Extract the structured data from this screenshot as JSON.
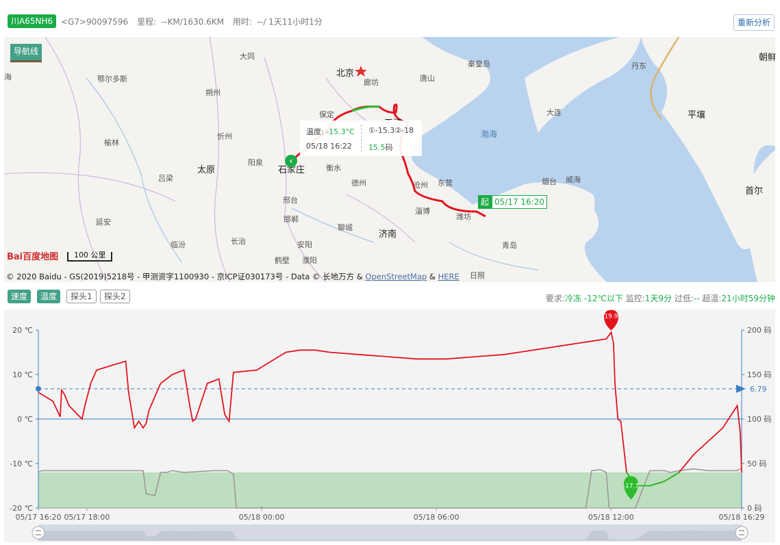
{
  "header": {
    "plate": "川A65NH6",
    "device": "<G7>90097596",
    "mileage_label": "里程:",
    "mileage_value": "--KM/1630.6KM",
    "duration_label": "用时:",
    "duration_value": "--/ 1天11小时1分",
    "reanalyze_label": "重新分析"
  },
  "map": {
    "nav_line_label": "导航线",
    "labels": [
      {
        "text": "北京",
        "cls": "big"
      },
      {
        "text": "天津",
        "cls": "big"
      },
      {
        "text": "石家庄",
        "cls": "big"
      },
      {
        "text": "太原",
        "cls": "big"
      },
      {
        "text": "济南",
        "cls": "big"
      },
      {
        "text": "平壤",
        "cls": "big"
      },
      {
        "text": "首尔",
        "cls": "big"
      },
      {
        "text": "朝鲜",
        "cls": "big"
      },
      {
        "text": "渤海",
        "cls": "sea"
      },
      {
        "text": "大同",
        "cls": ""
      },
      {
        "text": "鄂尔多斯",
        "cls": ""
      },
      {
        "text": "朔州",
        "cls": ""
      },
      {
        "text": "忻州",
        "cls": ""
      },
      {
        "text": "榆林",
        "cls": ""
      },
      {
        "text": "吕梁",
        "cls": ""
      },
      {
        "text": "阳泉",
        "cls": ""
      },
      {
        "text": "延安",
        "cls": ""
      },
      {
        "text": "临汾",
        "cls": ""
      },
      {
        "text": "长治",
        "cls": ""
      },
      {
        "text": "安阳",
        "cls": ""
      },
      {
        "text": "鹤壁",
        "cls": ""
      },
      {
        "text": "濮阳",
        "cls": ""
      },
      {
        "text": "邯郸",
        "cls": ""
      },
      {
        "text": "邢台",
        "cls": ""
      },
      {
        "text": "衡水",
        "cls": ""
      },
      {
        "text": "德州",
        "cls": ""
      },
      {
        "text": "聊城",
        "cls": ""
      },
      {
        "text": "保定",
        "cls": ""
      },
      {
        "text": "廊坊",
        "cls": ""
      },
      {
        "text": "唐山",
        "cls": ""
      },
      {
        "text": "秦皇岛",
        "cls": ""
      },
      {
        "text": "沧州",
        "cls": ""
      },
      {
        "text": "东营",
        "cls": ""
      },
      {
        "text": "淄博",
        "cls": ""
      },
      {
        "text": "潍坊",
        "cls": ""
      },
      {
        "text": "青岛",
        "cls": ""
      },
      {
        "text": "日照",
        "cls": ""
      },
      {
        "text": "烟台",
        "cls": ""
      },
      {
        "text": "威海",
        "cls": ""
      },
      {
        "text": "大连",
        "cls": ""
      },
      {
        "text": "丹东",
        "cls": ""
      },
      {
        "text": "海",
        "cls": ""
      }
    ],
    "tooltip": {
      "temp_label": "温度:",
      "temp_value": "-15.3°C",
      "probes": "①-15.3②-18",
      "time": "05/18 16:22",
      "speed_value": "15.5",
      "speed_unit": "码"
    },
    "start_marker": "起",
    "start_time": "05/17 16:20",
    "end_marker_icon": "chevron-left-icon",
    "scale_label": "100 公里",
    "baidu_logo": "Bai百度地图",
    "copyright": "© 2020 Baidu - GS(2019)5218号 - 甲测资字1100930 - 京ICP证030173号 - Data © 长地万方 &",
    "link_osm": "OpenStreetMap",
    "amp": "&",
    "link_here": "HERE"
  },
  "filters": {
    "speed": "速度",
    "temperature": "温度",
    "probe1": "探头1",
    "probe2": "探头2"
  },
  "requirement": {
    "req_label": "要求:",
    "req_value": "冷冻 -12℃以下",
    "monitor_label": "监控:",
    "monitor_value": "1天9分",
    "overdue_label": "过低:",
    "overdue_value": "--",
    "overtemp_label": "超温:",
    "overtemp_value": "21小时59分钟"
  },
  "chart_data": {
    "type": "line",
    "x_ticks": [
      "05/17 16:20",
      "05/17 18:00",
      "05/18 00:00",
      "05/18 06:00",
      "05/18 12:00",
      "05/18 16:29"
    ],
    "x_tick_hours": [
      0,
      1.667,
      7.667,
      13.667,
      19.667,
      24.15
    ],
    "left_axis": {
      "ticks": [
        "20 ℃",
        "10 ℃",
        "0 ℃",
        "-10 ℃",
        "-20 ℃"
      ],
      "ylim": [
        -20,
        20
      ]
    },
    "right_axis": {
      "ticks": [
        "200 码",
        "150 码",
        "100 码",
        "50 码",
        "0 码"
      ],
      "ylim": [
        0,
        200
      ]
    },
    "threshold_band": {
      "from": -20,
      "to": -12,
      "color": "#bddfbf"
    },
    "reference_line": {
      "value": "6.79",
      "color": "#3b7fc4"
    },
    "max_marker": {
      "value": "19.9"
    },
    "min_marker": {
      "value": "-17.7"
    },
    "series": [
      {
        "color": "#e3141e",
        "x": [
          0,
          0.5,
          0.75,
          0.8,
          0.9,
          1.05,
          1.5,
          1.6,
          1.8,
          2,
          2.5,
          3,
          3.1,
          3.3,
          3.45,
          3.6,
          3.7,
          3.8,
          4.2,
          4.6,
          5,
          5.2,
          5.3,
          5.4,
          5.8,
          6.2,
          6.4,
          6.55,
          6.7,
          7.5,
          8.5,
          9,
          9.5,
          10,
          11,
          12,
          13,
          14,
          15,
          16,
          17,
          18,
          18.5,
          19,
          19.5,
          19.67,
          19.75,
          19.8,
          19.9,
          20,
          20.2,
          20.5,
          21,
          21.5,
          22,
          22.5,
          23,
          23.5,
          23.8,
          24,
          24.1,
          24.15
        ],
        "y": [
          6,
          4,
          0.5,
          6.5,
          5.5,
          3,
          0,
          3,
          8,
          11,
          12,
          13,
          6,
          -2,
          -0.5,
          -2,
          -1,
          2,
          8,
          10,
          11,
          3,
          -0.5,
          0,
          8,
          9,
          1,
          -0.5,
          10.5,
          11,
          15,
          15.5,
          15.5,
          15,
          14.5,
          14,
          13.5,
          13.5,
          14,
          14.5,
          15.5,
          16.5,
          17,
          17.5,
          18,
          19.5,
          17,
          8,
          0,
          -0.5,
          -12,
          -15,
          -15,
          -14,
          -12,
          -8,
          -5,
          -2,
          1,
          3,
          -3,
          -12
        ]
      },
      {
        "color": "#999999",
        "x": [
          0,
          0.1,
          0.5,
          1,
          2,
          3,
          3.5,
          3.6,
          3.7,
          4,
          4.2,
          4.4,
          4.6,
          5,
          6,
          6.5,
          6.7,
          6.8,
          7,
          7.2,
          7.6,
          7.65,
          7.7,
          8,
          9,
          10,
          11,
          12,
          13,
          14,
          15,
          16,
          17,
          17.5,
          17.7,
          18,
          18.5,
          18.8,
          19,
          19.3,
          19.5,
          19.6,
          19.8,
          20,
          20.5,
          21,
          21.5,
          21.7,
          22,
          22.5,
          23,
          23.5,
          24,
          24.15
        ],
        "y": [
          40,
          42,
          42,
          42,
          42,
          42,
          42,
          42,
          16,
          14,
          40,
          40,
          42,
          40,
          42,
          42,
          38,
          0,
          0,
          0,
          0,
          1,
          0,
          0,
          0,
          0,
          0,
          0,
          0,
          0,
          0,
          0,
          0,
          0,
          0,
          0,
          0,
          0,
          42,
          43,
          40,
          0,
          0,
          0,
          0,
          42,
          42,
          40,
          42,
          44,
          42,
          42,
          42,
          45
        ]
      }
    ]
  }
}
